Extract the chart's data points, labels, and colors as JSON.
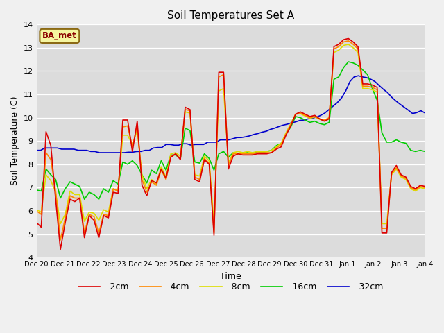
{
  "title": "Soil Temperatures Set A",
  "xlabel": "Time",
  "ylabel": "Soil Temperature (C)",
  "ylim": [
    4.0,
    14.0
  ],
  "yticks": [
    4.0,
    5.0,
    6.0,
    7.0,
    8.0,
    9.0,
    10.0,
    11.0,
    12.0,
    13.0,
    14.0
  ],
  "annotation": "BA_met",
  "colors": {
    "-2cm": "#dd0000",
    "-4cm": "#ff8800",
    "-8cm": "#dddd00",
    "-16cm": "#00cc00",
    "-32cm": "#0000cc"
  },
  "xtick_labels": [
    "Dec 20",
    "Dec 21",
    "Dec 22",
    "Dec 23",
    "Dec 24",
    "Dec 25",
    "Dec 26",
    "Dec 27",
    "Dec 28",
    "Dec 29",
    "Dec 30",
    "Dec 31",
    "Jan 1",
    "Jan 2",
    "Jan 3",
    "Jan 4"
  ],
  "line_width": 1.2,
  "series": {
    "-2cm": [
      5.5,
      5.3,
      9.4,
      8.8,
      6.5,
      4.35,
      5.5,
      6.5,
      6.4,
      6.55,
      4.85,
      5.8,
      5.6,
      4.85,
      5.8,
      5.7,
      6.8,
      6.75,
      9.9,
      9.9,
      8.55,
      9.85,
      7.1,
      6.65,
      7.3,
      7.2,
      7.8,
      7.4,
      8.3,
      8.45,
      8.2,
      10.45,
      10.35,
      7.35,
      7.25,
      8.2,
      8.0,
      4.95,
      11.95,
      11.95,
      7.8,
      8.35,
      8.45,
      8.4,
      8.4,
      8.4,
      8.45,
      8.45,
      8.45,
      8.5,
      8.65,
      8.75,
      9.25,
      9.65,
      10.15,
      10.25,
      10.15,
      10.05,
      10.1,
      9.95,
      9.85,
      9.95,
      13.05,
      13.15,
      13.35,
      13.4,
      13.25,
      13.05,
      11.45,
      11.45,
      11.4,
      11.3,
      5.05,
      5.05,
      7.65,
      7.95,
      7.55,
      7.45,
      7.05,
      6.95,
      7.1,
      7.05
    ],
    "-4cm": [
      6.0,
      5.85,
      8.5,
      8.2,
      6.85,
      4.75,
      5.7,
      6.65,
      6.55,
      6.55,
      5.05,
      5.85,
      5.75,
      5.05,
      5.85,
      5.8,
      6.95,
      6.85,
      9.6,
      9.65,
      8.75,
      9.65,
      7.35,
      6.8,
      7.25,
      7.1,
      7.75,
      7.35,
      8.35,
      8.45,
      8.25,
      10.35,
      10.3,
      7.45,
      7.35,
      8.25,
      8.05,
      5.05,
      11.75,
      11.85,
      7.95,
      8.45,
      8.45,
      8.45,
      8.45,
      8.45,
      8.5,
      8.5,
      8.5,
      8.5,
      8.7,
      8.85,
      9.3,
      9.7,
      10.15,
      10.2,
      10.1,
      10.0,
      10.05,
      9.95,
      9.9,
      10.0,
      12.95,
      13.05,
      13.25,
      13.3,
      13.15,
      12.95,
      11.35,
      11.35,
      11.3,
      11.2,
      5.25,
      5.25,
      7.6,
      7.85,
      7.5,
      7.4,
      7.0,
      6.9,
      7.05,
      7.0
    ],
    "-8cm": [
      6.05,
      5.95,
      7.55,
      7.3,
      6.8,
      5.45,
      5.85,
      6.85,
      6.7,
      6.7,
      5.55,
      5.95,
      5.9,
      5.6,
      6.05,
      5.95,
      6.95,
      6.85,
      9.25,
      9.25,
      8.85,
      9.45,
      7.55,
      6.95,
      7.35,
      7.15,
      7.9,
      7.45,
      8.45,
      8.5,
      8.35,
      10.25,
      10.2,
      7.55,
      7.5,
      8.35,
      8.15,
      5.45,
      11.15,
      11.25,
      8.05,
      8.5,
      8.55,
      8.5,
      8.55,
      8.5,
      8.55,
      8.55,
      8.55,
      8.6,
      8.75,
      8.9,
      9.35,
      9.75,
      10.15,
      10.17,
      10.07,
      9.97,
      10.03,
      9.93,
      9.88,
      9.98,
      12.8,
      12.9,
      13.1,
      13.15,
      13.0,
      12.8,
      11.25,
      11.25,
      11.2,
      11.1,
      5.45,
      5.45,
      7.55,
      7.8,
      7.45,
      7.35,
      6.95,
      6.85,
      7.0,
      6.95
    ],
    "-16cm": [
      6.9,
      6.85,
      7.8,
      7.55,
      7.35,
      6.55,
      6.95,
      7.25,
      7.15,
      7.05,
      6.5,
      6.8,
      6.7,
      6.5,
      6.95,
      6.8,
      7.3,
      7.15,
      8.1,
      8.0,
      8.15,
      7.95,
      7.55,
      7.2,
      7.75,
      7.6,
      8.15,
      7.75,
      8.4,
      8.4,
      8.25,
      9.55,
      9.45,
      8.1,
      8.05,
      8.45,
      8.25,
      7.75,
      8.45,
      8.55,
      8.3,
      8.5,
      8.45,
      8.5,
      8.5,
      8.45,
      8.55,
      8.5,
      8.55,
      8.6,
      8.8,
      8.9,
      9.3,
      9.6,
      10.05,
      10.0,
      9.9,
      9.8,
      9.85,
      9.75,
      9.7,
      9.8,
      11.65,
      11.75,
      12.15,
      12.4,
      12.35,
      12.25,
      12.05,
      11.85,
      11.25,
      10.75,
      9.35,
      8.95,
      8.95,
      9.05,
      8.95,
      8.9,
      8.6,
      8.55,
      8.6,
      8.55
    ],
    "-32cm": [
      8.6,
      8.6,
      8.7,
      8.7,
      8.7,
      8.7,
      8.65,
      8.65,
      8.65,
      8.65,
      8.6,
      8.6,
      8.6,
      8.55,
      8.55,
      8.5,
      8.5,
      8.5,
      8.5,
      8.5,
      8.5,
      8.5,
      8.52,
      8.52,
      8.55,
      8.55,
      8.6,
      8.6,
      8.7,
      8.72,
      8.72,
      8.85,
      8.85,
      8.82,
      8.82,
      8.88,
      8.88,
      8.82,
      8.85,
      8.85,
      8.85,
      8.95,
      8.95,
      8.95,
      9.05,
      9.05,
      9.05,
      9.1,
      9.15,
      9.15,
      9.18,
      9.22,
      9.28,
      9.32,
      9.38,
      9.42,
      9.5,
      9.55,
      9.62,
      9.68,
      9.72,
      9.78,
      9.82,
      9.88,
      9.9,
      9.95,
      9.98,
      10.02,
      10.1,
      10.2,
      10.35,
      10.5,
      10.65,
      10.85,
      11.15,
      11.55,
      11.75,
      11.8,
      11.75,
      11.72,
      11.65,
      11.55,
      11.38,
      11.22,
      11.08,
      10.88,
      10.72,
      10.58,
      10.45,
      10.32,
      10.18,
      10.22,
      10.3,
      10.2
    ]
  }
}
